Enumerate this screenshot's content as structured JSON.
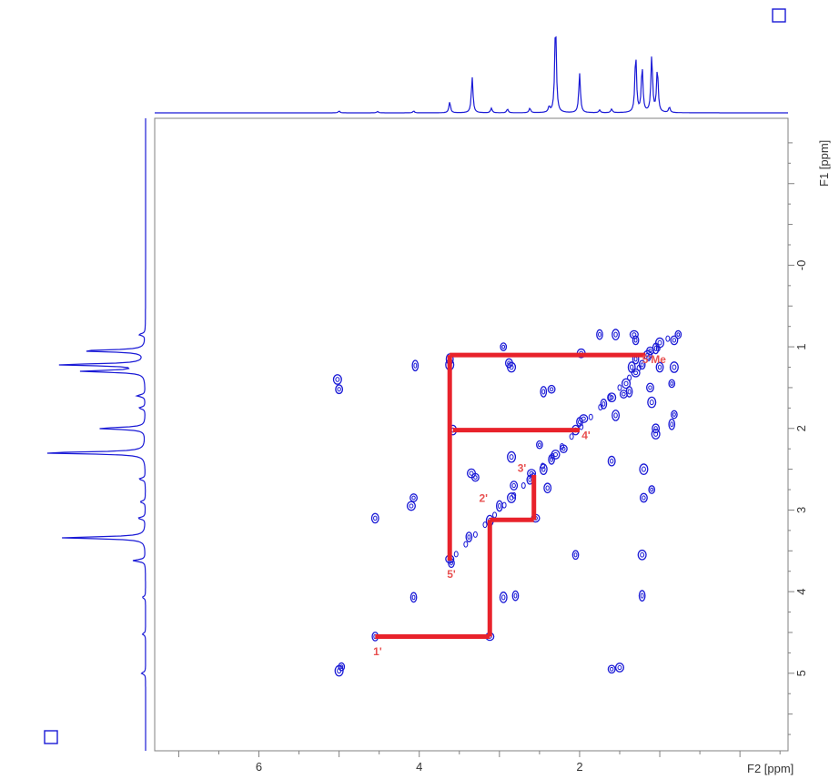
{
  "colors": {
    "spectrum": "#1a1ad6",
    "assignment": "#e8222b",
    "label": "#e85050",
    "frame": "#808080",
    "page": "#ffffff"
  },
  "icons": {
    "top_right": "square-icon",
    "bottom_left": "square-icon"
  },
  "chart_data": {
    "type": "scatter",
    "subtype": "2D NMR COSY contour plot",
    "xlabel": "F2 [ppm]",
    "ylabel": "F1 [ppm]",
    "xlim": [
      7.3,
      -0.6
    ],
    "ylim": [
      -1.8,
      5.95
    ],
    "x_reversed": true,
    "y_reversed": true,
    "x_ticks": [
      6,
      4,
      2
    ],
    "x_tick_labels": [
      "6",
      "4",
      "2"
    ],
    "y_ticks": [
      0,
      1,
      2,
      3,
      4,
      5
    ],
    "y_tick_labels": [
      "-0",
      "1",
      "2",
      "3",
      "4",
      "5"
    ],
    "grid": false,
    "legend": "none",
    "projection_f2": [
      {
        "ppm": 5.0,
        "height": 0.02
      },
      {
        "ppm": 4.52,
        "height": 0.015
      },
      {
        "ppm": 4.07,
        "height": 0.02
      },
      {
        "ppm": 3.62,
        "height": 0.12
      },
      {
        "ppm": 3.34,
        "height": 0.39
      },
      {
        "ppm": 3.1,
        "height": 0.05
      },
      {
        "ppm": 2.9,
        "height": 0.04
      },
      {
        "ppm": 2.62,
        "height": 0.05
      },
      {
        "ppm": 2.38,
        "height": 0.06
      },
      {
        "ppm": 2.3,
        "height": 1.0
      },
      {
        "ppm": 2.0,
        "height": 0.43
      },
      {
        "ppm": 1.75,
        "height": 0.03
      },
      {
        "ppm": 1.6,
        "height": 0.04
      },
      {
        "ppm": 1.3,
        "height": 0.64
      },
      {
        "ppm": 1.22,
        "height": 0.5
      },
      {
        "ppm": 1.1,
        "height": 0.62
      },
      {
        "ppm": 1.03,
        "height": 0.48
      },
      {
        "ppm": 0.88,
        "height": 0.06
      }
    ],
    "projection_f1": [
      {
        "ppm": 0.85,
        "height": 0.06
      },
      {
        "ppm": 1.05,
        "height": 0.62
      },
      {
        "ppm": 1.22,
        "height": 0.82
      },
      {
        "ppm": 1.3,
        "height": 0.6
      },
      {
        "ppm": 1.6,
        "height": 0.08
      },
      {
        "ppm": 1.75,
        "height": 0.06
      },
      {
        "ppm": 2.0,
        "height": 0.45
      },
      {
        "ppm": 2.3,
        "height": 1.0
      },
      {
        "ppm": 2.62,
        "height": 0.06
      },
      {
        "ppm": 2.9,
        "height": 0.05
      },
      {
        "ppm": 3.1,
        "height": 0.07
      },
      {
        "ppm": 3.34,
        "height": 0.8
      },
      {
        "ppm": 3.62,
        "height": 0.12
      },
      {
        "ppm": 4.07,
        "height": 0.03
      },
      {
        "ppm": 4.52,
        "height": 0.03
      },
      {
        "ppm": 5.0,
        "height": 0.04
      }
    ],
    "cross_peaks": [
      {
        "f2": 0.77,
        "f1": 0.85
      },
      {
        "f2": 0.82,
        "f1": 0.92
      },
      {
        "f2": 1.0,
        "f1": 0.95
      },
      {
        "f2": 1.05,
        "f1": 1.02
      },
      {
        "f2": 1.12,
        "f1": 1.05
      },
      {
        "f2": 1.15,
        "f1": 1.1
      },
      {
        "f2": 1.3,
        "f1": 1.15
      },
      {
        "f2": 1.35,
        "f1": 1.25
      },
      {
        "f2": 1.3,
        "f1": 1.32
      },
      {
        "f2": 1.22,
        "f1": 1.22
      },
      {
        "f2": 1.0,
        "f1": 1.25
      },
      {
        "f2": 0.82,
        "f1": 1.25
      },
      {
        "f2": 0.85,
        "f1": 1.45
      },
      {
        "f2": 1.12,
        "f1": 1.5
      },
      {
        "f2": 1.42,
        "f1": 1.45
      },
      {
        "f2": 1.38,
        "f1": 1.55
      },
      {
        "f2": 1.45,
        "f1": 1.58
      },
      {
        "f2": 1.6,
        "f1": 1.62
      },
      {
        "f2": 1.7,
        "f1": 1.7
      },
      {
        "f2": 1.55,
        "f1": 1.84
      },
      {
        "f2": 1.95,
        "f1": 1.88
      },
      {
        "f2": 2.0,
        "f1": 1.92
      },
      {
        "f2": 2.05,
        "f1": 2.02
      },
      {
        "f2": 1.1,
        "f1": 1.68
      },
      {
        "f2": 0.82,
        "f1": 1.83
      },
      {
        "f2": 1.05,
        "f1": 2.0
      },
      {
        "f2": 1.05,
        "f1": 2.07
      },
      {
        "f2": 0.85,
        "f1": 1.95
      },
      {
        "f2": 2.2,
        "f1": 2.25
      },
      {
        "f2": 2.3,
        "f1": 2.32
      },
      {
        "f2": 2.35,
        "f1": 2.38
      },
      {
        "f2": 2.45,
        "f1": 2.5
      },
      {
        "f2": 2.6,
        "f1": 2.55
      },
      {
        "f2": 2.62,
        "f1": 2.63
      },
      {
        "f2": 2.4,
        "f1": 2.73
      },
      {
        "f2": 2.85,
        "f1": 2.35
      },
      {
        "f2": 2.5,
        "f1": 2.2
      },
      {
        "f2": 2.82,
        "f1": 2.7
      },
      {
        "f2": 2.85,
        "f1": 2.85
      },
      {
        "f2": 3.0,
        "f1": 2.95
      },
      {
        "f2": 3.3,
        "f1": 2.6
      },
      {
        "f2": 3.35,
        "f1": 2.55
      },
      {
        "f2": 3.38,
        "f1": 3.33
      },
      {
        "f2": 3.12,
        "f1": 3.13
      },
      {
        "f2": 2.55,
        "f1": 3.1
      },
      {
        "f2": 2.05,
        "f1": 3.55
      },
      {
        "f2": 1.6,
        "f1": 2.4
      },
      {
        "f2": 1.2,
        "f1": 2.5
      },
      {
        "f2": 1.1,
        "f1": 2.75
      },
      {
        "f2": 1.2,
        "f1": 2.85
      },
      {
        "f2": 1.22,
        "f1": 3.55
      },
      {
        "f2": 1.22,
        "f1": 4.05
      },
      {
        "f2": 1.6,
        "f1": 4.95
      },
      {
        "f2": 1.5,
        "f1": 4.93
      },
      {
        "f2": 2.8,
        "f1": 4.05
      },
      {
        "f2": 2.95,
        "f1": 4.07
      },
      {
        "f2": 3.12,
        "f1": 4.55
      },
      {
        "f2": 4.55,
        "f1": 4.55
      },
      {
        "f2": 4.55,
        "f1": 3.1
      },
      {
        "f2": 5.0,
        "f1": 4.97
      },
      {
        "f2": 4.97,
        "f1": 4.92
      },
      {
        "f2": 5.0,
        "f1": 1.52
      },
      {
        "f2": 5.02,
        "f1": 1.4
      },
      {
        "f2": 4.05,
        "f1": 1.23
      },
      {
        "f2": 4.07,
        "f1": 2.85
      },
      {
        "f2": 4.1,
        "f1": 2.95
      },
      {
        "f2": 4.07,
        "f1": 4.07
      },
      {
        "f2": 3.62,
        "f1": 1.15
      },
      {
        "f2": 3.62,
        "f1": 3.6
      },
      {
        "f2": 3.6,
        "f1": 3.65
      },
      {
        "f2": 3.58,
        "f1": 2.02
      },
      {
        "f2": 3.62,
        "f1": 1.22
      },
      {
        "f2": 2.95,
        "f1": 1.0
      },
      {
        "f2": 2.88,
        "f1": 1.2
      },
      {
        "f2": 2.85,
        "f1": 1.25
      },
      {
        "f2": 2.45,
        "f1": 1.55
      },
      {
        "f2": 2.35,
        "f1": 1.52
      },
      {
        "f2": 1.98,
        "f1": 1.08
      },
      {
        "f2": 1.75,
        "f1": 0.85
      },
      {
        "f2": 1.55,
        "f1": 0.85
      },
      {
        "f2": 1.32,
        "f1": 0.85
      },
      {
        "f2": 1.3,
        "f1": 0.92
      }
    ],
    "assignment_path": [
      {
        "from": [
          4.55,
          4.55
        ],
        "to": [
          3.12,
          4.55
        ]
      },
      {
        "from": [
          3.12,
          4.55
        ],
        "to": [
          3.12,
          3.12
        ]
      },
      {
        "from": [
          3.12,
          3.12
        ],
        "to": [
          2.57,
          3.12
        ]
      },
      {
        "from": [
          2.57,
          3.12
        ],
        "to": [
          2.57,
          2.57
        ]
      },
      {
        "from": [
          3.62,
          3.62
        ],
        "to": [
          3.62,
          1.1
        ]
      },
      {
        "from": [
          3.62,
          1.1
        ],
        "to": [
          1.18,
          1.1
        ]
      },
      {
        "from": [
          3.58,
          2.02
        ],
        "to": [
          2.0,
          2.02
        ]
      }
    ],
    "annotations": [
      {
        "text": "1'",
        "f2": 4.52,
        "f1": 4.78
      },
      {
        "text": "2'",
        "f2": 3.2,
        "f1": 2.9
      },
      {
        "text": "3'",
        "f2": 2.72,
        "f1": 2.53
      },
      {
        "text": "4'",
        "f2": 1.92,
        "f1": 2.13
      },
      {
        "text": "5'",
        "f2": 3.6,
        "f1": 3.83
      },
      {
        "text": "5'Me",
        "f2": 1.07,
        "f1": 1.2
      }
    ]
  }
}
